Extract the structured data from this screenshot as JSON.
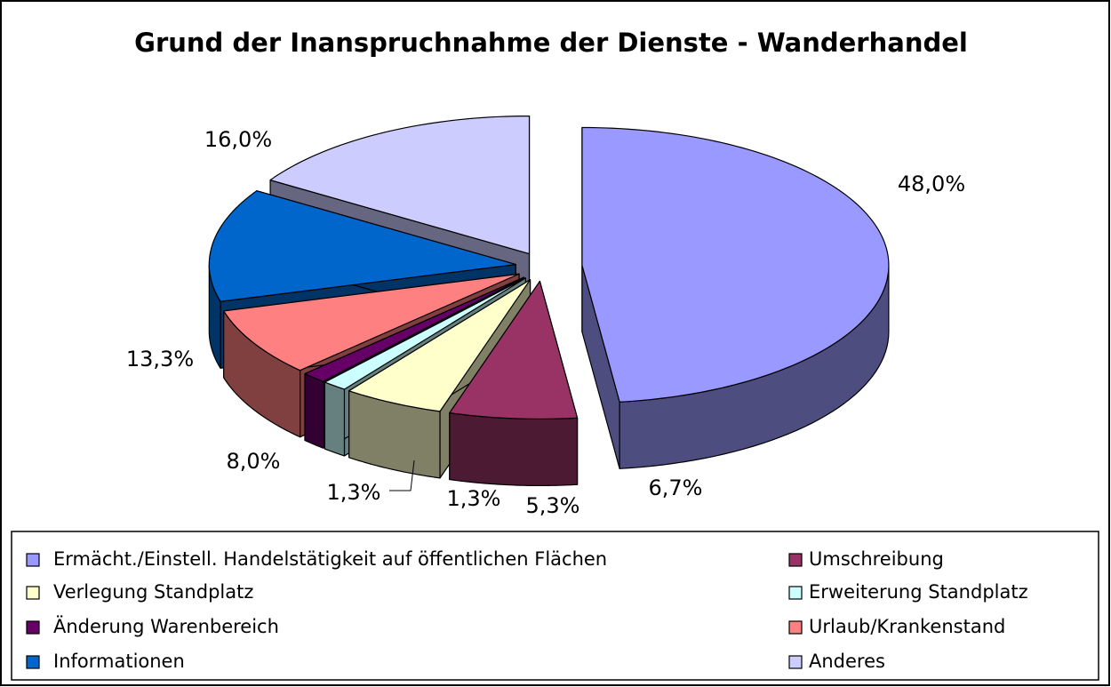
{
  "chart_data": {
    "type": "pie",
    "title": "Grund der Inanspruchnahme der Dienste - Wanderhandel",
    "categories": [
      "Ermächt./Einstell. Handelstätigkeit auf öffentlichen Flächen",
      "Umschreibung",
      "Verlegung Standplatz",
      "Erweiterung Standplatz",
      "Änderung Warenbereich",
      "Urlaub/Krankenstand",
      "Informationen",
      "Anderes"
    ],
    "values": [
      48.0,
      6.7,
      5.3,
      1.3,
      1.3,
      8.0,
      13.3,
      16.0
    ],
    "value_labels": [
      "48,0%",
      "6,7%",
      "5,3%",
      "1,3%",
      "1,3%",
      "8,0%",
      "13,3%",
      "16,0%"
    ],
    "colors": [
      "#9999ff",
      "#993366",
      "#ffffcc",
      "#ccffff",
      "#660066",
      "#ff8080",
      "#0066cc",
      "#ccccff"
    ],
    "legend": "bottom"
  }
}
